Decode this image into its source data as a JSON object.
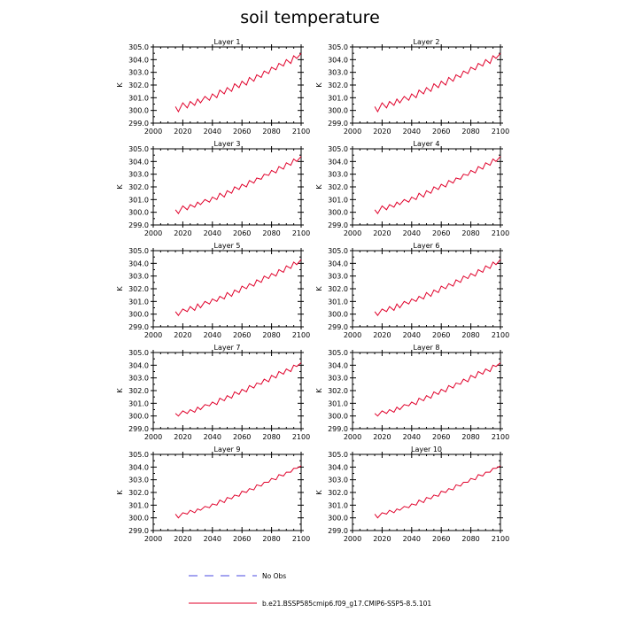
{
  "figure": {
    "title": "soil temperature",
    "legend": [
      {
        "label": "No Obs",
        "style": "dashed",
        "color": "#4a4ae0"
      },
      {
        "label": "b.e21.BSSP585cmip6.f09_g17.CMIP6-SSP5-8.5.101",
        "style": "solid",
        "color": "#e0002a"
      }
    ]
  },
  "chart_data": [
    {
      "type": "line",
      "title": "Layer 1",
      "ylabel": "K",
      "xlim": [
        2000,
        2100
      ],
      "ylim": [
        299.0,
        305.0
      ],
      "xticks": [
        "2000",
        "2020",
        "2040",
        "2060",
        "2080",
        "2100"
      ],
      "yticks": [
        "299.0",
        "300.0",
        "301.0",
        "302.0",
        "303.0",
        "304.0",
        "305.0"
      ],
      "series": [
        {
          "color": "#e0002a",
          "x": [
            2015,
            2017,
            2020,
            2023,
            2025,
            2028,
            2030,
            2032,
            2035,
            2038,
            2040,
            2043,
            2045,
            2048,
            2050,
            2053,
            2055,
            2058,
            2060,
            2063,
            2065,
            2068,
            2070,
            2073,
            2075,
            2078,
            2080,
            2083,
            2085,
            2088,
            2090,
            2093,
            2095,
            2097,
            2100
          ],
          "values": [
            300.3,
            299.9,
            300.6,
            300.2,
            300.7,
            300.4,
            300.9,
            300.6,
            301.1,
            300.8,
            301.3,
            301.0,
            301.6,
            301.3,
            301.8,
            301.5,
            302.1,
            301.8,
            302.3,
            302.0,
            302.6,
            302.3,
            302.8,
            302.6,
            303.1,
            302.9,
            303.4,
            303.2,
            303.7,
            303.5,
            304.0,
            303.7,
            304.3,
            304.1,
            304.5
          ]
        }
      ]
    },
    {
      "type": "line",
      "title": "Layer 2",
      "ylabel": "K",
      "xlim": [
        2000,
        2100
      ],
      "ylim": [
        299.0,
        305.0
      ],
      "xticks": [
        "2000",
        "2020",
        "2040",
        "2060",
        "2080",
        "2100"
      ],
      "yticks": [
        "299.0",
        "300.0",
        "301.0",
        "302.0",
        "303.0",
        "304.0",
        "305.0"
      ],
      "series": [
        {
          "color": "#e0002a",
          "x": [
            2015,
            2017,
            2020,
            2023,
            2025,
            2028,
            2030,
            2032,
            2035,
            2038,
            2040,
            2043,
            2045,
            2048,
            2050,
            2053,
            2055,
            2058,
            2060,
            2063,
            2065,
            2068,
            2070,
            2073,
            2075,
            2078,
            2080,
            2083,
            2085,
            2088,
            2090,
            2093,
            2095,
            2097,
            2100
          ],
          "values": [
            300.3,
            299.9,
            300.6,
            300.2,
            300.7,
            300.4,
            300.9,
            300.6,
            301.1,
            300.8,
            301.3,
            301.0,
            301.6,
            301.3,
            301.8,
            301.5,
            302.1,
            301.8,
            302.3,
            302.0,
            302.6,
            302.3,
            302.8,
            302.6,
            303.1,
            302.9,
            303.4,
            303.2,
            303.7,
            303.5,
            304.0,
            303.7,
            304.3,
            304.1,
            304.5
          ]
        }
      ]
    },
    {
      "type": "line",
      "title": "Layer 3",
      "ylabel": "K",
      "xlim": [
        2000,
        2100
      ],
      "ylim": [
        299.0,
        305.0
      ],
      "xticks": [
        "2000",
        "2020",
        "2040",
        "2060",
        "2080",
        "2100"
      ],
      "yticks": [
        "299.0",
        "300.0",
        "301.0",
        "302.0",
        "303.0",
        "304.0",
        "305.0"
      ],
      "series": [
        {
          "color": "#e0002a",
          "x": [
            2015,
            2017,
            2020,
            2023,
            2025,
            2028,
            2030,
            2032,
            2035,
            2038,
            2040,
            2043,
            2045,
            2048,
            2050,
            2053,
            2055,
            2058,
            2060,
            2063,
            2065,
            2068,
            2070,
            2073,
            2075,
            2078,
            2080,
            2083,
            2085,
            2088,
            2090,
            2093,
            2095,
            2097,
            2100
          ],
          "values": [
            300.2,
            299.9,
            300.5,
            300.2,
            300.6,
            300.4,
            300.8,
            300.6,
            301.0,
            300.8,
            301.2,
            301.0,
            301.5,
            301.2,
            301.7,
            301.5,
            302.0,
            301.8,
            302.2,
            302.0,
            302.5,
            302.3,
            302.7,
            302.6,
            303.0,
            302.9,
            303.3,
            303.1,
            303.6,
            303.4,
            303.9,
            303.7,
            304.2,
            304.0,
            304.4
          ]
        }
      ]
    },
    {
      "type": "line",
      "title": "Layer 4",
      "ylabel": "K",
      "xlim": [
        2000,
        2100
      ],
      "ylim": [
        299.0,
        305.0
      ],
      "xticks": [
        "2000",
        "2020",
        "2040",
        "2060",
        "2080",
        "2100"
      ],
      "yticks": [
        "299.0",
        "300.0",
        "301.0",
        "302.0",
        "303.0",
        "304.0",
        "305.0"
      ],
      "series": [
        {
          "color": "#e0002a",
          "x": [
            2015,
            2017,
            2020,
            2023,
            2025,
            2028,
            2030,
            2032,
            2035,
            2038,
            2040,
            2043,
            2045,
            2048,
            2050,
            2053,
            2055,
            2058,
            2060,
            2063,
            2065,
            2068,
            2070,
            2073,
            2075,
            2078,
            2080,
            2083,
            2085,
            2088,
            2090,
            2093,
            2095,
            2097,
            2100
          ],
          "values": [
            300.2,
            299.9,
            300.5,
            300.2,
            300.6,
            300.4,
            300.8,
            300.6,
            301.0,
            300.8,
            301.2,
            301.0,
            301.5,
            301.2,
            301.7,
            301.5,
            302.0,
            301.8,
            302.2,
            302.0,
            302.5,
            302.3,
            302.7,
            302.6,
            303.0,
            302.9,
            303.3,
            303.1,
            303.6,
            303.4,
            303.9,
            303.7,
            304.2,
            304.0,
            304.4
          ]
        }
      ]
    },
    {
      "type": "line",
      "title": "Layer 5",
      "ylabel": "K",
      "xlim": [
        2000,
        2100
      ],
      "ylim": [
        299.0,
        305.0
      ],
      "xticks": [
        "2000",
        "2020",
        "2040",
        "2060",
        "2080",
        "2100"
      ],
      "yticks": [
        "299.0",
        "300.0",
        "301.0",
        "302.0",
        "303.0",
        "304.0",
        "305.0"
      ],
      "series": [
        {
          "color": "#e0002a",
          "x": [
            2015,
            2017,
            2020,
            2023,
            2025,
            2028,
            2030,
            2032,
            2035,
            2038,
            2040,
            2043,
            2045,
            2048,
            2050,
            2053,
            2055,
            2058,
            2060,
            2063,
            2065,
            2068,
            2070,
            2073,
            2075,
            2078,
            2080,
            2083,
            2085,
            2088,
            2090,
            2093,
            2095,
            2097,
            2100
          ],
          "values": [
            300.2,
            299.9,
            300.4,
            300.2,
            300.6,
            300.3,
            300.8,
            300.5,
            301.0,
            300.8,
            301.2,
            301.0,
            301.4,
            301.2,
            301.7,
            301.4,
            301.9,
            301.7,
            302.2,
            302.0,
            302.4,
            302.2,
            302.7,
            302.5,
            303.0,
            302.8,
            303.2,
            303.0,
            303.5,
            303.3,
            303.8,
            303.6,
            304.1,
            303.9,
            304.3
          ]
        }
      ]
    },
    {
      "type": "line",
      "title": "Layer 6",
      "ylabel": "K",
      "xlim": [
        2000,
        2100
      ],
      "ylim": [
        299.0,
        305.0
      ],
      "xticks": [
        "2000",
        "2020",
        "2040",
        "2060",
        "2080",
        "2100"
      ],
      "yticks": [
        "299.0",
        "300.0",
        "301.0",
        "302.0",
        "303.0",
        "304.0",
        "305.0"
      ],
      "series": [
        {
          "color": "#e0002a",
          "x": [
            2015,
            2017,
            2020,
            2023,
            2025,
            2028,
            2030,
            2032,
            2035,
            2038,
            2040,
            2043,
            2045,
            2048,
            2050,
            2053,
            2055,
            2058,
            2060,
            2063,
            2065,
            2068,
            2070,
            2073,
            2075,
            2078,
            2080,
            2083,
            2085,
            2088,
            2090,
            2093,
            2095,
            2097,
            2100
          ],
          "values": [
            300.2,
            299.9,
            300.4,
            300.2,
            300.6,
            300.3,
            300.8,
            300.5,
            301.0,
            300.8,
            301.2,
            301.0,
            301.4,
            301.2,
            301.7,
            301.4,
            301.9,
            301.7,
            302.2,
            302.0,
            302.4,
            302.2,
            302.7,
            302.5,
            303.0,
            302.8,
            303.2,
            303.0,
            303.5,
            303.3,
            303.8,
            303.6,
            304.1,
            303.9,
            304.3
          ]
        }
      ]
    },
    {
      "type": "line",
      "title": "Layer 7",
      "ylabel": "K",
      "xlim": [
        2000,
        2100
      ],
      "ylim": [
        299.0,
        305.0
      ],
      "xticks": [
        "2000",
        "2020",
        "2040",
        "2060",
        "2080",
        "2100"
      ],
      "yticks": [
        "299.0",
        "300.0",
        "301.0",
        "302.0",
        "303.0",
        "304.0",
        "305.0"
      ],
      "series": [
        {
          "color": "#e0002a",
          "x": [
            2015,
            2017,
            2020,
            2023,
            2025,
            2028,
            2030,
            2032,
            2035,
            2038,
            2040,
            2043,
            2045,
            2048,
            2050,
            2053,
            2055,
            2058,
            2060,
            2063,
            2065,
            2068,
            2070,
            2073,
            2075,
            2078,
            2080,
            2083,
            2085,
            2088,
            2090,
            2093,
            2095,
            2097,
            2100
          ],
          "values": [
            300.2,
            300.0,
            300.4,
            300.2,
            300.5,
            300.3,
            300.7,
            300.5,
            300.9,
            300.8,
            301.1,
            300.9,
            301.4,
            301.2,
            301.6,
            301.4,
            301.9,
            301.7,
            302.1,
            301.9,
            302.4,
            302.2,
            302.6,
            302.5,
            302.9,
            302.7,
            303.2,
            303.0,
            303.5,
            303.3,
            303.7,
            303.5,
            304.0,
            303.9,
            304.2
          ]
        }
      ]
    },
    {
      "type": "line",
      "title": "Layer 8",
      "ylabel": "K",
      "xlim": [
        2000,
        2100
      ],
      "ylim": [
        299.0,
        305.0
      ],
      "xticks": [
        "2000",
        "2020",
        "2040",
        "2060",
        "2080",
        "2100"
      ],
      "yticks": [
        "299.0",
        "300.0",
        "301.0",
        "302.0",
        "303.0",
        "304.0",
        "305.0"
      ],
      "series": [
        {
          "color": "#e0002a",
          "x": [
            2015,
            2017,
            2020,
            2023,
            2025,
            2028,
            2030,
            2032,
            2035,
            2038,
            2040,
            2043,
            2045,
            2048,
            2050,
            2053,
            2055,
            2058,
            2060,
            2063,
            2065,
            2068,
            2070,
            2073,
            2075,
            2078,
            2080,
            2083,
            2085,
            2088,
            2090,
            2093,
            2095,
            2097,
            2100
          ],
          "values": [
            300.2,
            300.0,
            300.4,
            300.2,
            300.5,
            300.3,
            300.7,
            300.5,
            300.9,
            300.8,
            301.1,
            300.9,
            301.4,
            301.2,
            301.6,
            301.4,
            301.9,
            301.7,
            302.1,
            301.9,
            302.4,
            302.2,
            302.6,
            302.5,
            302.9,
            302.7,
            303.2,
            303.0,
            303.5,
            303.3,
            303.7,
            303.5,
            304.0,
            303.9,
            304.2
          ]
        }
      ]
    },
    {
      "type": "line",
      "title": "Layer 9",
      "ylabel": "K",
      "xlim": [
        2000,
        2100
      ],
      "ylim": [
        299.0,
        305.0
      ],
      "xticks": [
        "2000",
        "2020",
        "2040",
        "2060",
        "2080",
        "2100"
      ],
      "yticks": [
        "299.0",
        "300.0",
        "301.0",
        "302.0",
        "303.0",
        "304.0",
        "305.0"
      ],
      "series": [
        {
          "color": "#e0002a",
          "x": [
            2015,
            2017,
            2020,
            2023,
            2025,
            2028,
            2030,
            2032,
            2035,
            2038,
            2040,
            2043,
            2045,
            2048,
            2050,
            2053,
            2055,
            2058,
            2060,
            2063,
            2065,
            2068,
            2070,
            2073,
            2075,
            2078,
            2080,
            2083,
            2085,
            2088,
            2090,
            2093,
            2095,
            2097,
            2100
          ],
          "values": [
            300.3,
            300.0,
            300.4,
            300.3,
            300.6,
            300.4,
            300.7,
            300.6,
            300.9,
            300.8,
            301.1,
            301.0,
            301.4,
            301.2,
            301.6,
            301.5,
            301.8,
            301.7,
            302.1,
            302.0,
            302.3,
            302.2,
            302.6,
            302.5,
            302.8,
            302.8,
            303.1,
            303.0,
            303.4,
            303.3,
            303.6,
            303.6,
            303.9,
            303.9,
            304.1
          ]
        }
      ]
    },
    {
      "type": "line",
      "title": "Layer 10",
      "ylabel": "K",
      "xlim": [
        2000,
        2100
      ],
      "ylim": [
        299.0,
        305.0
      ],
      "xticks": [
        "2000",
        "2020",
        "2040",
        "2060",
        "2080",
        "2100"
      ],
      "yticks": [
        "299.0",
        "300.0",
        "301.0",
        "302.0",
        "303.0",
        "304.0",
        "305.0"
      ],
      "series": [
        {
          "color": "#e0002a",
          "x": [
            2015,
            2017,
            2020,
            2023,
            2025,
            2028,
            2030,
            2032,
            2035,
            2038,
            2040,
            2043,
            2045,
            2048,
            2050,
            2053,
            2055,
            2058,
            2060,
            2063,
            2065,
            2068,
            2070,
            2073,
            2075,
            2078,
            2080,
            2083,
            2085,
            2088,
            2090,
            2093,
            2095,
            2097,
            2100
          ],
          "values": [
            300.3,
            300.0,
            300.4,
            300.3,
            300.6,
            300.4,
            300.7,
            300.6,
            300.9,
            300.8,
            301.1,
            301.0,
            301.4,
            301.2,
            301.6,
            301.5,
            301.8,
            301.7,
            302.1,
            302.0,
            302.3,
            302.2,
            302.6,
            302.5,
            302.8,
            302.8,
            303.1,
            303.0,
            303.4,
            303.3,
            303.6,
            303.6,
            303.9,
            303.9,
            304.1
          ]
        }
      ]
    }
  ]
}
